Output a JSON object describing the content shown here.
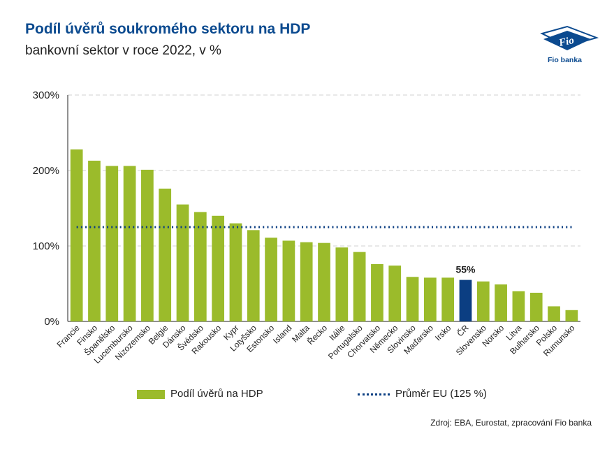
{
  "title": "Podíl úvěrů soukromého sektoru na HDP",
  "subtitle": "bankovní sektor v roce 2022, v %",
  "logo": {
    "text": "Fio banka",
    "mark": "Fio",
    "icon": "fio-flag-logo-icon"
  },
  "source": "Zdroj: EBA, Eurostat, zpracování Fio banka",
  "colors": {
    "bar": "#9bbb2b",
    "highlight": "#0b3e82",
    "average": "#0b3e82",
    "title": "#0b4a8f"
  },
  "chart_data": {
    "type": "bar",
    "categories": [
      "Francie",
      "Finsko",
      "Španělsko",
      "Lucembursko",
      "Nizozemsko",
      "Belgie",
      "Dánsko",
      "Švédsko",
      "Rakousko",
      "Kypr",
      "Lotyšsko",
      "Estonsko",
      "Island",
      "Malta",
      "Řecko",
      "Itálie",
      "Portugalsko",
      "Chorvatsko",
      "Německo",
      "Slovinsko",
      "Maďarsko",
      "Irsko",
      "ČR",
      "Slovensko",
      "Norsko",
      "Litva",
      "Bulharsko",
      "Polsko",
      "Rumunsko"
    ],
    "series": [
      {
        "name": "Podíl úvěrů na HDP",
        "values": [
          228,
          213,
          206,
          206,
          201,
          176,
          155,
          145,
          140,
          130,
          121,
          111,
          107,
          105,
          104,
          98,
          92,
          76,
          74,
          59,
          58,
          58,
          55,
          53,
          49,
          40,
          38,
          20,
          15
        ]
      }
    ],
    "highlight": {
      "category": "ČR",
      "label": "55%"
    },
    "average": {
      "name": "Průměr EU (125 %)",
      "value": 125,
      "style": "dotted"
    },
    "yticks": [
      "0%",
      "100%",
      "200%",
      "300%"
    ],
    "ytick_values": [
      0,
      100,
      200,
      300
    ],
    "ylim": [
      0,
      300
    ],
    "grid": "horizontal dashed",
    "legend_position": "bottom"
  }
}
